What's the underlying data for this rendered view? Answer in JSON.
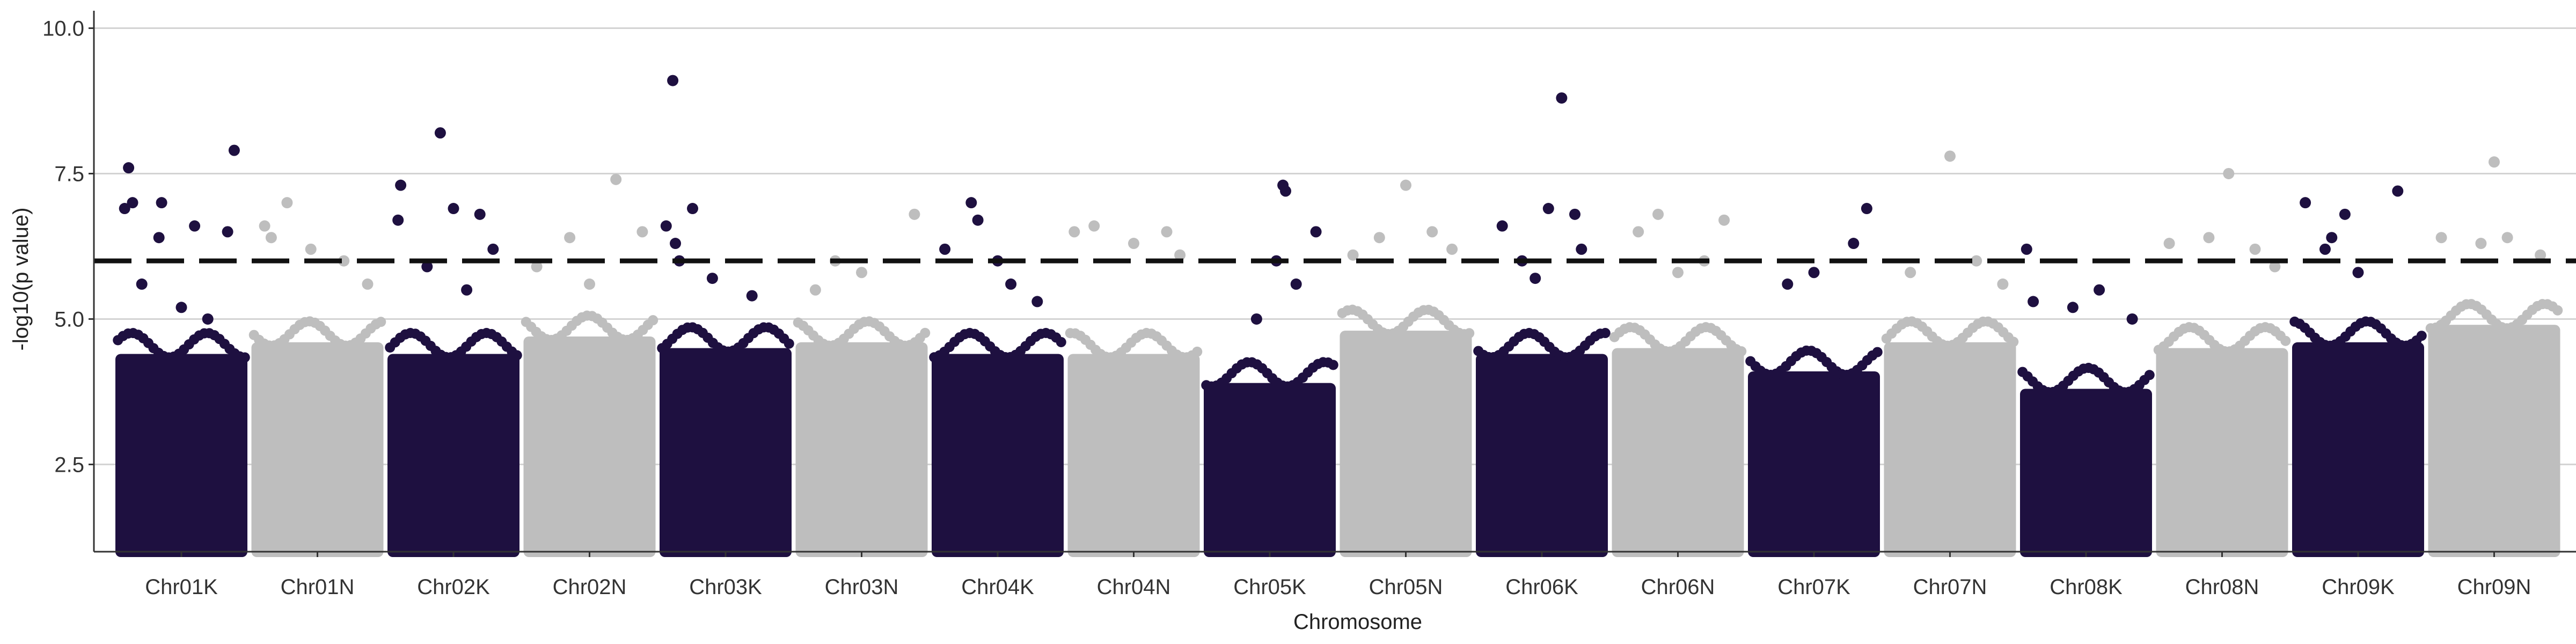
{
  "chart_data": {
    "type": "scatter",
    "subtype": "manhattan",
    "title": "",
    "xlabel": "Chromosome",
    "ylabel": "-log10(p value)",
    "ylim": [
      1,
      10.3
    ],
    "yticks": [
      2.5,
      5.0,
      7.5,
      10.0
    ],
    "ytick_labels": [
      "2.5",
      "5.0",
      "7.5",
      "10.0"
    ],
    "grid": true,
    "threshold": 6.0,
    "categories": [
      "Chr01K",
      "Chr01N",
      "Chr02K",
      "Chr02N",
      "Chr03K",
      "Chr03N",
      "Chr04K",
      "Chr04N",
      "Chr05K",
      "Chr05N",
      "Chr06K",
      "Chr06N",
      "Chr07K",
      "Chr07N",
      "Chr08K",
      "Chr08N",
      "Chr09K",
      "Chr09N"
    ],
    "colors": {
      "odd": "#1e1040",
      "even": "#bebebe",
      "threshold": "#111111",
      "grid": "#d3d3d3"
    },
    "dense_band_top": [
      4.4,
      4.6,
      4.4,
      4.7,
      4.5,
      4.6,
      4.4,
      4.4,
      3.9,
      4.8,
      4.4,
      4.5,
      4.1,
      4.6,
      3.8,
      4.5,
      4.6,
      4.9
    ],
    "points": [
      {
        "chr": "Chr01K",
        "x": 0.1,
        "y": 7.6
      },
      {
        "chr": "Chr01K",
        "x": 0.07,
        "y": 6.9
      },
      {
        "chr": "Chr01K",
        "x": 0.13,
        "y": 7.0
      },
      {
        "chr": "Chr01K",
        "x": 0.35,
        "y": 7.0
      },
      {
        "chr": "Chr01K",
        "x": 0.33,
        "y": 6.4
      },
      {
        "chr": "Chr01K",
        "x": 0.6,
        "y": 6.6
      },
      {
        "chr": "Chr01K",
        "x": 0.9,
        "y": 7.9
      },
      {
        "chr": "Chr01K",
        "x": 0.85,
        "y": 6.5
      },
      {
        "chr": "Chr01K",
        "x": 0.2,
        "y": 5.6
      },
      {
        "chr": "Chr01K",
        "x": 0.5,
        "y": 5.2
      },
      {
        "chr": "Chr01K",
        "x": 0.7,
        "y": 5.0
      },
      {
        "chr": "Chr01N",
        "x": 0.1,
        "y": 6.6
      },
      {
        "chr": "Chr01N",
        "x": 0.15,
        "y": 6.4
      },
      {
        "chr": "Chr01N",
        "x": 0.27,
        "y": 7.0
      },
      {
        "chr": "Chr01N",
        "x": 0.45,
        "y": 6.2
      },
      {
        "chr": "Chr01N",
        "x": 0.7,
        "y": 6.0
      },
      {
        "chr": "Chr01N",
        "x": 0.88,
        "y": 5.6
      },
      {
        "chr": "Chr02K",
        "x": 0.1,
        "y": 7.3
      },
      {
        "chr": "Chr02K",
        "x": 0.08,
        "y": 6.7
      },
      {
        "chr": "Chr02K",
        "x": 0.4,
        "y": 8.2
      },
      {
        "chr": "Chr02K",
        "x": 0.5,
        "y": 6.9
      },
      {
        "chr": "Chr02K",
        "x": 0.7,
        "y": 6.8
      },
      {
        "chr": "Chr02K",
        "x": 0.8,
        "y": 6.2
      },
      {
        "chr": "Chr02K",
        "x": 0.3,
        "y": 5.9
      },
      {
        "chr": "Chr02K",
        "x": 0.6,
        "y": 5.5
      },
      {
        "chr": "Chr02N",
        "x": 0.1,
        "y": 5.9
      },
      {
        "chr": "Chr02N",
        "x": 0.35,
        "y": 6.4
      },
      {
        "chr": "Chr02N",
        "x": 0.7,
        "y": 7.4
      },
      {
        "chr": "Chr02N",
        "x": 0.9,
        "y": 6.5
      },
      {
        "chr": "Chr02N",
        "x": 0.5,
        "y": 5.6
      },
      {
        "chr": "Chr03K",
        "x": 0.1,
        "y": 9.1
      },
      {
        "chr": "Chr03K",
        "x": 0.05,
        "y": 6.6
      },
      {
        "chr": "Chr03K",
        "x": 0.12,
        "y": 6.3
      },
      {
        "chr": "Chr03K",
        "x": 0.25,
        "y": 6.9
      },
      {
        "chr": "Chr03K",
        "x": 0.15,
        "y": 6.0
      },
      {
        "chr": "Chr03K",
        "x": 0.4,
        "y": 5.7
      },
      {
        "chr": "Chr03K",
        "x": 0.7,
        "y": 5.4
      },
      {
        "chr": "Chr03N",
        "x": 0.3,
        "y": 6.0
      },
      {
        "chr": "Chr03N",
        "x": 0.5,
        "y": 5.8
      },
      {
        "chr": "Chr03N",
        "x": 0.9,
        "y": 6.8
      },
      {
        "chr": "Chr03N",
        "x": 0.15,
        "y": 5.5
      },
      {
        "chr": "Chr04K",
        "x": 0.1,
        "y": 6.2
      },
      {
        "chr": "Chr04K",
        "x": 0.3,
        "y": 7.0
      },
      {
        "chr": "Chr04K",
        "x": 0.35,
        "y": 6.7
      },
      {
        "chr": "Chr04K",
        "x": 0.5,
        "y": 6.0
      },
      {
        "chr": "Chr04K",
        "x": 0.6,
        "y": 5.6
      },
      {
        "chr": "Chr04K",
        "x": 0.8,
        "y": 5.3
      },
      {
        "chr": "Chr04N",
        "x": 0.05,
        "y": 6.5
      },
      {
        "chr": "Chr04N",
        "x": 0.2,
        "y": 6.6
      },
      {
        "chr": "Chr04N",
        "x": 0.5,
        "y": 6.3
      },
      {
        "chr": "Chr04N",
        "x": 0.75,
        "y": 6.5
      },
      {
        "chr": "Chr04N",
        "x": 0.85,
        "y": 6.1
      },
      {
        "chr": "Chr05K",
        "x": 0.6,
        "y": 7.3
      },
      {
        "chr": "Chr05K",
        "x": 0.62,
        "y": 7.2
      },
      {
        "chr": "Chr05K",
        "x": 0.85,
        "y": 6.5
      },
      {
        "chr": "Chr05K",
        "x": 0.55,
        "y": 6.0
      },
      {
        "chr": "Chr05K",
        "x": 0.7,
        "y": 5.6
      },
      {
        "chr": "Chr05K",
        "x": 0.4,
        "y": 5.0
      },
      {
        "chr": "Chr05N",
        "x": 0.1,
        "y": 6.1
      },
      {
        "chr": "Chr05N",
        "x": 0.3,
        "y": 6.4
      },
      {
        "chr": "Chr05N",
        "x": 0.5,
        "y": 7.3
      },
      {
        "chr": "Chr05N",
        "x": 0.7,
        "y": 6.5
      },
      {
        "chr": "Chr05N",
        "x": 0.85,
        "y": 6.2
      },
      {
        "chr": "Chr06K",
        "x": 0.2,
        "y": 6.6
      },
      {
        "chr": "Chr06K",
        "x": 0.35,
        "y": 6.0
      },
      {
        "chr": "Chr06K",
        "x": 0.55,
        "y": 6.9
      },
      {
        "chr": "Chr06K",
        "x": 0.65,
        "y": 8.8
      },
      {
        "chr": "Chr06K",
        "x": 0.75,
        "y": 6.8
      },
      {
        "chr": "Chr06K",
        "x": 0.8,
        "y": 6.2
      },
      {
        "chr": "Chr06K",
        "x": 0.45,
        "y": 5.7
      },
      {
        "chr": "Chr06N",
        "x": 0.2,
        "y": 6.5
      },
      {
        "chr": "Chr06N",
        "x": 0.35,
        "y": 6.8
      },
      {
        "chr": "Chr06N",
        "x": 0.7,
        "y": 6.0
      },
      {
        "chr": "Chr06N",
        "x": 0.85,
        "y": 6.7
      },
      {
        "chr": "Chr06N",
        "x": 0.5,
        "y": 5.8
      },
      {
        "chr": "Chr07K",
        "x": 0.3,
        "y": 5.6
      },
      {
        "chr": "Chr07K",
        "x": 0.5,
        "y": 5.8
      },
      {
        "chr": "Chr07K",
        "x": 0.8,
        "y": 6.3
      },
      {
        "chr": "Chr07K",
        "x": 0.9,
        "y": 6.9
      },
      {
        "chr": "Chr07N",
        "x": 0.2,
        "y": 5.8
      },
      {
        "chr": "Chr07N",
        "x": 0.5,
        "y": 7.8
      },
      {
        "chr": "Chr07N",
        "x": 0.7,
        "y": 6.0
      },
      {
        "chr": "Chr07N",
        "x": 0.9,
        "y": 5.6
      },
      {
        "chr": "Chr08K",
        "x": 0.05,
        "y": 6.2
      },
      {
        "chr": "Chr08K",
        "x": 0.1,
        "y": 5.3
      },
      {
        "chr": "Chr08K",
        "x": 0.4,
        "y": 5.2
      },
      {
        "chr": "Chr08K",
        "x": 0.6,
        "y": 5.5
      },
      {
        "chr": "Chr08K",
        "x": 0.85,
        "y": 5.0
      },
      {
        "chr": "Chr08N",
        "x": 0.1,
        "y": 6.3
      },
      {
        "chr": "Chr08N",
        "x": 0.4,
        "y": 6.4
      },
      {
        "chr": "Chr08N",
        "x": 0.55,
        "y": 7.5
      },
      {
        "chr": "Chr08N",
        "x": 0.75,
        "y": 6.2
      },
      {
        "chr": "Chr08N",
        "x": 0.9,
        "y": 5.9
      },
      {
        "chr": "Chr09K",
        "x": 0.1,
        "y": 7.0
      },
      {
        "chr": "Chr09K",
        "x": 0.25,
        "y": 6.2
      },
      {
        "chr": "Chr09K",
        "x": 0.3,
        "y": 6.4
      },
      {
        "chr": "Chr09K",
        "x": 0.4,
        "y": 6.8
      },
      {
        "chr": "Chr09K",
        "x": 0.8,
        "y": 7.2
      },
      {
        "chr": "Chr09K",
        "x": 0.5,
        "y": 5.8
      },
      {
        "chr": "Chr09N",
        "x": 0.1,
        "y": 6.4
      },
      {
        "chr": "Chr09N",
        "x": 0.4,
        "y": 6.3
      },
      {
        "chr": "Chr09N",
        "x": 0.5,
        "y": 7.7
      },
      {
        "chr": "Chr09N",
        "x": 0.6,
        "y": 6.4
      },
      {
        "chr": "Chr09N",
        "x": 0.85,
        "y": 6.1
      }
    ]
  }
}
